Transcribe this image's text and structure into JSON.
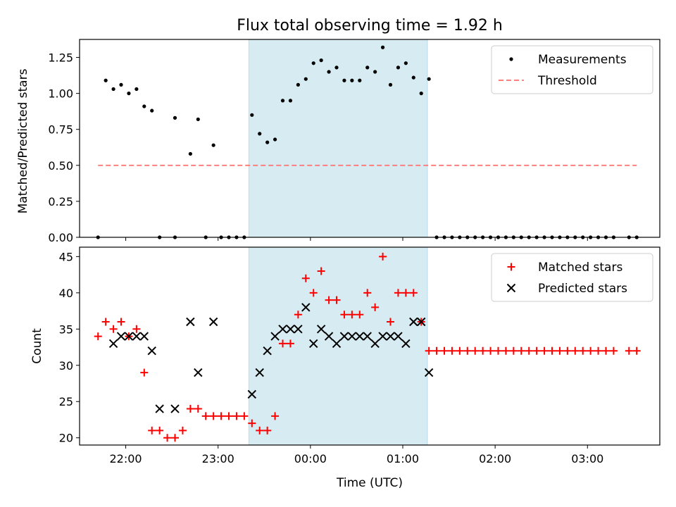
{
  "title": "Flux total observing time = 1.92 h",
  "chart_data": [
    {
      "type": "scatter",
      "panel": "top",
      "ylabel": "Matched/Predicted stars",
      "ylim": [
        0,
        1.375
      ],
      "yticks": [
        0.0,
        0.25,
        0.5,
        0.75,
        1.0,
        1.25
      ],
      "ytick_labels": [
        "0.00",
        "0.25",
        "0.50",
        "0.75",
        "1.00",
        "1.25"
      ],
      "legend_position": "top-right",
      "grid": false,
      "series": [
        {
          "name": "Measurements",
          "marker": "dot",
          "color": "#000000",
          "points": [
            [
              "21:42",
              0.0
            ],
            [
              "21:47",
              1.09
            ],
            [
              "21:52",
              1.03
            ],
            [
              "21:57",
              1.06
            ],
            [
              "22:02",
              1.0
            ],
            [
              "22:07",
              1.03
            ],
            [
              "22:12",
              0.91
            ],
            [
              "22:17",
              0.88
            ],
            [
              "22:22",
              0.0
            ],
            [
              "22:32",
              0.83
            ],
            [
              "22:32",
              0.0
            ],
            [
              "22:42",
              0.58
            ],
            [
              "22:47",
              0.82
            ],
            [
              "22:52",
              0.0
            ],
            [
              "22:57",
              0.64
            ],
            [
              "23:02",
              0.0
            ],
            [
              "23:07",
              0.0
            ],
            [
              "23:12",
              0.0
            ],
            [
              "23:17",
              0.0
            ],
            [
              "23:22",
              0.85
            ],
            [
              "23:27",
              0.72
            ],
            [
              "23:32",
              0.66
            ],
            [
              "23:37",
              0.68
            ],
            [
              "23:42",
              0.95
            ],
            [
              "23:47",
              0.95
            ],
            [
              "23:52",
              1.06
            ],
            [
              "23:57",
              1.1
            ],
            [
              "00:02",
              1.21
            ],
            [
              "00:07",
              1.23
            ],
            [
              "00:12",
              1.15
            ],
            [
              "00:17",
              1.18
            ],
            [
              "00:22",
              1.09
            ],
            [
              "00:27",
              1.09
            ],
            [
              "00:32",
              1.09
            ],
            [
              "00:37",
              1.18
            ],
            [
              "00:42",
              1.15
            ],
            [
              "00:47",
              1.32
            ],
            [
              "00:52",
              1.06
            ],
            [
              "00:57",
              1.18
            ],
            [
              "01:02",
              1.21
            ],
            [
              "01:07",
              1.11
            ],
            [
              "01:12",
              1.0
            ],
            [
              "01:17",
              1.1
            ],
            [
              "01:22",
              0.0
            ],
            [
              "01:27",
              0.0
            ],
            [
              "01:32",
              0.0
            ],
            [
              "01:37",
              0.0
            ],
            [
              "01:42",
              0.0
            ],
            [
              "01:47",
              0.0
            ],
            [
              "01:52",
              0.0
            ],
            [
              "01:57",
              0.0
            ],
            [
              "02:02",
              0.0
            ],
            [
              "02:07",
              0.0
            ],
            [
              "02:12",
              0.0
            ],
            [
              "02:17",
              0.0
            ],
            [
              "02:22",
              0.0
            ],
            [
              "02:27",
              0.0
            ],
            [
              "02:32",
              0.0
            ],
            [
              "02:37",
              0.0
            ],
            [
              "02:42",
              0.0
            ],
            [
              "02:47",
              0.0
            ],
            [
              "02:52",
              0.0
            ],
            [
              "02:57",
              0.0
            ],
            [
              "03:02",
              0.0
            ],
            [
              "03:07",
              0.0
            ],
            [
              "03:12",
              0.0
            ],
            [
              "03:17",
              0.0
            ],
            [
              "03:27",
              0.0
            ],
            [
              "03:32",
              0.0
            ]
          ]
        },
        {
          "name": "Threshold",
          "marker": "dashed-line",
          "color": "#ff7f7f",
          "points": [
            [
              "21:42",
              0.5
            ],
            [
              "03:32",
              0.5
            ]
          ]
        }
      ]
    },
    {
      "type": "scatter",
      "panel": "bottom",
      "xlabel": "Time (UTC)",
      "ylabel": "Count",
      "ylim": [
        19,
        46.3
      ],
      "yticks": [
        20,
        25,
        30,
        35,
        40,
        45
      ],
      "ytick_labels": [
        "20",
        "25",
        "30",
        "35",
        "40",
        "45"
      ],
      "legend_position": "top-right",
      "grid": false,
      "series": [
        {
          "name": "Matched stars",
          "marker": "plus",
          "color": "#ff0000",
          "points": [
            [
              "21:42",
              34
            ],
            [
              "21:47",
              36
            ],
            [
              "21:52",
              35
            ],
            [
              "21:57",
              36
            ],
            [
              "22:02",
              34
            ],
            [
              "22:07",
              35
            ],
            [
              "22:12",
              29
            ],
            [
              "22:17",
              21
            ],
            [
              "22:22",
              21
            ],
            [
              "22:27",
              20
            ],
            [
              "22:32",
              20
            ],
            [
              "22:37",
              21
            ],
            [
              "22:42",
              24
            ],
            [
              "22:47",
              24
            ],
            [
              "22:52",
              23
            ],
            [
              "22:57",
              23
            ],
            [
              "23:02",
              23
            ],
            [
              "23:07",
              23
            ],
            [
              "23:12",
              23
            ],
            [
              "23:17",
              23
            ],
            [
              "23:22",
              22
            ],
            [
              "23:27",
              21
            ],
            [
              "23:32",
              21
            ],
            [
              "23:37",
              23
            ],
            [
              "23:42",
              33
            ],
            [
              "23:47",
              33
            ],
            [
              "23:52",
              37
            ],
            [
              "23:57",
              42
            ],
            [
              "00:02",
              40
            ],
            [
              "00:07",
              43
            ],
            [
              "00:12",
              39
            ],
            [
              "00:17",
              39
            ],
            [
              "00:22",
              37
            ],
            [
              "00:27",
              37
            ],
            [
              "00:32",
              37
            ],
            [
              "00:37",
              40
            ],
            [
              "00:42",
              38
            ],
            [
              "00:47",
              45
            ],
            [
              "00:52",
              36
            ],
            [
              "00:57",
              40
            ],
            [
              "01:02",
              40
            ],
            [
              "01:07",
              40
            ],
            [
              "01:12",
              36
            ],
            [
              "01:17",
              32
            ],
            [
              "01:22",
              32
            ],
            [
              "01:27",
              32
            ],
            [
              "01:32",
              32
            ],
            [
              "01:37",
              32
            ],
            [
              "01:42",
              32
            ],
            [
              "01:47",
              32
            ],
            [
              "01:52",
              32
            ],
            [
              "01:57",
              32
            ],
            [
              "02:02",
              32
            ],
            [
              "02:07",
              32
            ],
            [
              "02:12",
              32
            ],
            [
              "02:17",
              32
            ],
            [
              "02:22",
              32
            ],
            [
              "02:27",
              32
            ],
            [
              "02:32",
              32
            ],
            [
              "02:37",
              32
            ],
            [
              "02:42",
              32
            ],
            [
              "02:47",
              32
            ],
            [
              "02:52",
              32
            ],
            [
              "02:57",
              32
            ],
            [
              "03:02",
              32
            ],
            [
              "03:07",
              32
            ],
            [
              "03:12",
              32
            ],
            [
              "03:17",
              32
            ],
            [
              "03:27",
              32
            ],
            [
              "03:32",
              32
            ]
          ]
        },
        {
          "name": "Predicted stars",
          "marker": "x",
          "color": "#000000",
          "points": [
            [
              "21:52",
              33
            ],
            [
              "21:57",
              34
            ],
            [
              "22:02",
              34
            ],
            [
              "22:07",
              34
            ],
            [
              "22:12",
              34
            ],
            [
              "22:17",
              32
            ],
            [
              "22:22",
              24
            ],
            [
              "22:32",
              24
            ],
            [
              "22:42",
              36
            ],
            [
              "22:47",
              29
            ],
            [
              "22:57",
              36
            ],
            [
              "23:22",
              26
            ],
            [
              "23:27",
              29
            ],
            [
              "23:32",
              32
            ],
            [
              "23:37",
              34
            ],
            [
              "23:42",
              35
            ],
            [
              "23:47",
              35
            ],
            [
              "23:52",
              35
            ],
            [
              "23:57",
              38
            ],
            [
              "00:02",
              33
            ],
            [
              "00:07",
              35
            ],
            [
              "00:12",
              34
            ],
            [
              "00:17",
              33
            ],
            [
              "00:22",
              34
            ],
            [
              "00:27",
              34
            ],
            [
              "00:32",
              34
            ],
            [
              "00:37",
              34
            ],
            [
              "00:42",
              33
            ],
            [
              "00:47",
              34
            ],
            [
              "00:52",
              34
            ],
            [
              "00:57",
              34
            ],
            [
              "01:02",
              33
            ],
            [
              "01:07",
              36
            ],
            [
              "01:12",
              36
            ],
            [
              "01:17",
              29
            ]
          ]
        }
      ]
    }
  ],
  "shared_x": {
    "type": "time",
    "range": [
      "21:30",
      "03:47"
    ],
    "ticks": [
      "22:00",
      "23:00",
      "00:00",
      "01:00",
      "02:00",
      "03:00"
    ],
    "highlight_span": [
      "23:20",
      "01:16"
    ],
    "highlight_color": "#add8e6"
  }
}
